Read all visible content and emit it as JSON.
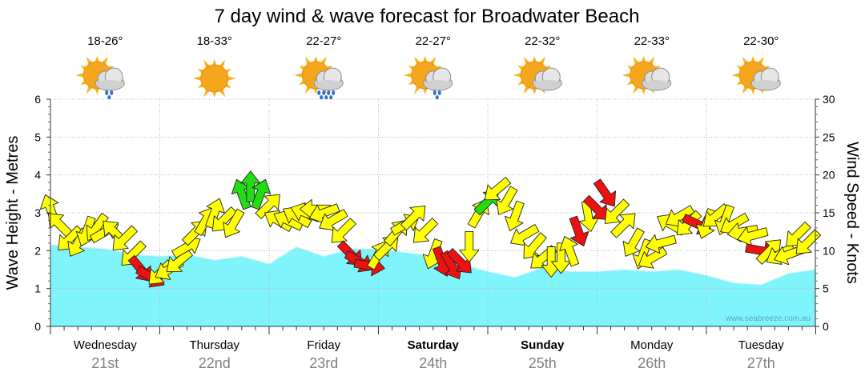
{
  "chart_data": {
    "type": "area",
    "title": "7 day wind & wave forecast for Broadwater Beach",
    "y_left": {
      "label": "Wave Height - Metres",
      "range": [
        0,
        6
      ],
      "ticks": [
        "0",
        "1",
        "2",
        "3",
        "4",
        "5",
        "6"
      ]
    },
    "y_right": {
      "label": "Wind Speed - Knots",
      "range": [
        0,
        30
      ],
      "ticks": [
        "0",
        "5",
        "10",
        "15",
        "20",
        "25",
        "30"
      ]
    },
    "days": [
      {
        "name": "Wednesday",
        "date": "21st",
        "temp": "18-26°",
        "icon": "sun-cloud-showers-icon",
        "bold": false
      },
      {
        "name": "Thursday",
        "date": "22nd",
        "temp": "18-33°",
        "icon": "sun-icon",
        "bold": false
      },
      {
        "name": "Friday",
        "date": "23rd",
        "temp": "22-27°",
        "icon": "sun-cloud-rain-icon",
        "bold": false
      },
      {
        "name": "Saturday",
        "date": "24th",
        "temp": "22-27°",
        "icon": "sun-cloud-showers-icon",
        "bold": true
      },
      {
        "name": "Sunday",
        "date": "25th",
        "temp": "22-32°",
        "icon": "sun-cloud-icon",
        "bold": true
      },
      {
        "name": "Monday",
        "date": "26th",
        "temp": "22-33°",
        "icon": "sun-cloud-icon",
        "bold": false
      },
      {
        "name": "Tuesday",
        "date": "27th",
        "temp": "22-30°",
        "icon": "sun-cloud-icon",
        "bold": false
      }
    ],
    "wave_series": {
      "name": "Wave height (m)",
      "t": [
        0,
        0.25,
        0.5,
        0.75,
        1.0,
        1.25,
        1.5,
        1.75,
        2.0,
        2.25,
        2.5,
        2.75,
        3.0,
        3.25,
        3.5,
        3.75,
        4.0,
        4.25,
        4.5,
        4.75,
        5.0,
        5.25,
        5.5,
        5.75,
        6.0,
        6.25,
        6.5,
        6.75,
        7.0
      ],
      "values": [
        2.15,
        2.1,
        2.05,
        1.9,
        1.85,
        1.9,
        1.75,
        1.85,
        1.65,
        2.1,
        1.85,
        2.05,
        2.05,
        1.95,
        1.85,
        1.65,
        1.45,
        1.3,
        1.55,
        1.45,
        1.45,
        1.5,
        1.45,
        1.5,
        1.35,
        1.15,
        1.1,
        1.4,
        1.5
      ]
    },
    "wind_series": {
      "name": "Wind speed (knots)",
      "note": "dir = compass direction the arrow points toward (0 = up/north, 90 = right/east)",
      "t": [
        0.0,
        0.08,
        0.17,
        0.25,
        0.33,
        0.42,
        0.5,
        0.58,
        0.67,
        0.75,
        0.83,
        0.92,
        1.0,
        1.08,
        1.17,
        1.25,
        1.33,
        1.42,
        1.5,
        1.58,
        1.67,
        1.75,
        1.83,
        1.92,
        2.0,
        2.08,
        2.17,
        2.25,
        2.33,
        2.42,
        2.5,
        2.58,
        2.67,
        2.75,
        2.83,
        2.92,
        3.0,
        3.08,
        3.17,
        3.25,
        3.33,
        3.42,
        3.5,
        3.58,
        3.67,
        3.75,
        3.83,
        3.92,
        4.0,
        4.08,
        4.17,
        4.25,
        4.33,
        4.42,
        4.5,
        4.58,
        4.67,
        4.75,
        4.83,
        4.92,
        5.0,
        5.08,
        5.17,
        5.25,
        5.33,
        5.42,
        5.5,
        5.58,
        5.67,
        5.75,
        5.83,
        5.92,
        6.0,
        6.08,
        6.17,
        6.25,
        6.33,
        6.42,
        6.5,
        6.58,
        6.67,
        6.75,
        6.83,
        6.92
      ],
      "speed": [
        15.5,
        13.5,
        11.5,
        11.0,
        12.5,
        13.0,
        12.5,
        12.5,
        11.5,
        9.5,
        7.5,
        6.5,
        7.0,
        7.5,
        8.5,
        10.5,
        12.5,
        14.0,
        15.0,
        14.0,
        13.5,
        17.5,
        18.5,
        17.5,
        16.0,
        14.0,
        14.0,
        14.5,
        15.0,
        15.5,
        15.0,
        14.0,
        12.5,
        9.5,
        8.5,
        8.0,
        9.5,
        10.5,
        12.5,
        13.5,
        14.5,
        12.5,
        9.5,
        8.5,
        8.0,
        8.5,
        10.5,
        15.0,
        16.5,
        18.0,
        16.5,
        14.5,
        12.0,
        10.5,
        9.0,
        8.5,
        9.0,
        10.0,
        12.5,
        14.5,
        15.5,
        17.5,
        15.0,
        13.5,
        11.0,
        9.5,
        9.0,
        11.0,
        13.5,
        14.5,
        13.5,
        13.5,
        13.5,
        14.5,
        14.0,
        13.5,
        12.5,
        12.0,
        10.0,
        10.0,
        9.5,
        9.5,
        12.0,
        11.0
      ],
      "dir": [
        340,
        315,
        225,
        210,
        200,
        215,
        60,
        315,
        225,
        225,
        140,
        120,
        225,
        240,
        230,
        60,
        45,
        30,
        20,
        225,
        210,
        340,
        0,
        20,
        45,
        300,
        295,
        300,
        290,
        270,
        250,
        240,
        225,
        135,
        120,
        100,
        30,
        45,
        40,
        60,
        45,
        225,
        200,
        160,
        150,
        135,
        180,
        30,
        45,
        230,
        210,
        200,
        240,
        220,
        230,
        180,
        180,
        340,
        160,
        170,
        135,
        145,
        225,
        45,
        210,
        200,
        240,
        255,
        300,
        240,
        225,
        115,
        200,
        230,
        200,
        240,
        260,
        255,
        100,
        45,
        240,
        250,
        225,
        225
      ]
    }
  },
  "credit": "www.seabreeze.com.au"
}
